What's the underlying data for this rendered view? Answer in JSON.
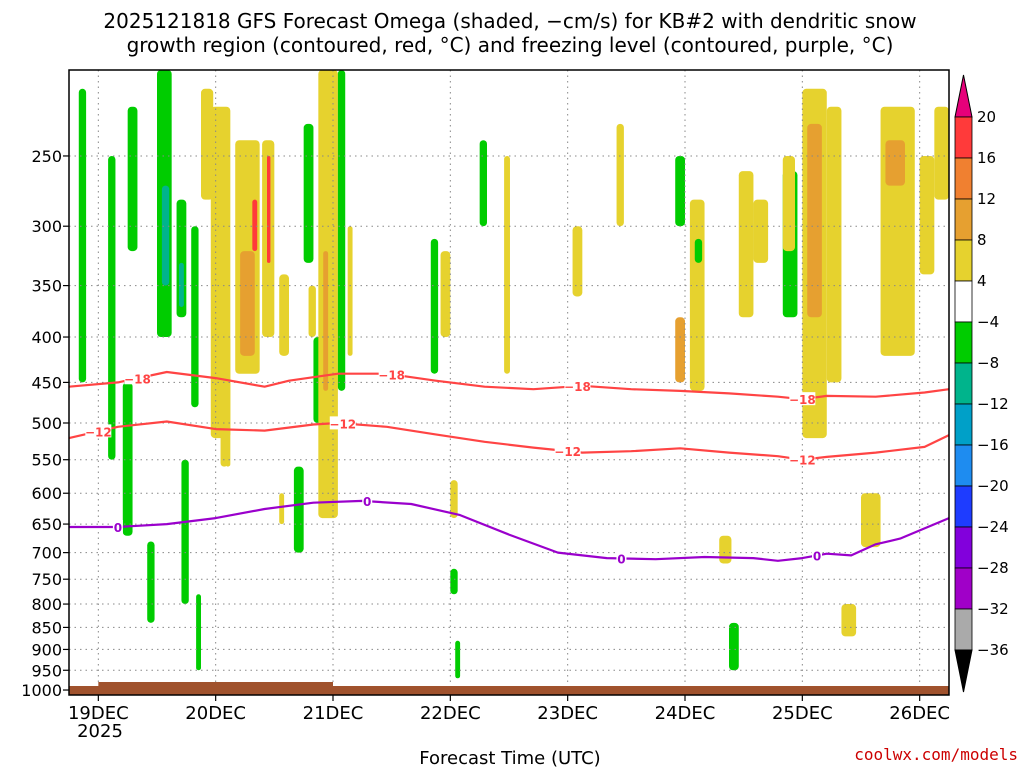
{
  "chart_data": {
    "type": "heatmap",
    "title_lines": [
      "2025121818 GFS Forecast Omega (shaded, −cm/s) for KB#2 with dendritic snow",
      "growth region (contoured, red, °C) and freezing level (contoured, purple, °C)"
    ],
    "xlabel": "Forecast Time (UTC)",
    "year_label": "2025",
    "x_ticks": [
      "19DEC",
      "20DEC",
      "21DEC",
      "22DEC",
      "23DEC",
      "24DEC",
      "25DEC",
      "26DEC"
    ],
    "x_tick_hours": [
      6,
      30,
      54,
      78,
      102,
      126,
      150,
      174
    ],
    "x_range_hours": [
      0,
      180
    ],
    "y_ticks": [
      250,
      300,
      350,
      400,
      450,
      500,
      550,
      600,
      650,
      700,
      750,
      800,
      850,
      900,
      950,
      1000
    ],
    "y_range_hpa": [
      200,
      1013
    ],
    "colorbar": {
      "labels": [
        "20",
        "16",
        "12",
        "8",
        "4",
        "−4",
        "−8",
        "−12",
        "−16",
        "−20",
        "−24",
        "−28",
        "−32",
        "−36"
      ],
      "colors": [
        "#ff3a3a",
        "#f08030",
        "#e6a030",
        "#e6d22e",
        "#ffffff",
        "#00cc00",
        "#00b48c",
        "#00a0c8",
        "#1e8cf0",
        "#1e3cff",
        "#8200dc",
        "#a000c8",
        "#aaaaaa"
      ],
      "top_arrow_color": "#e6007a",
      "bottom_arrow_color": "#000000"
    },
    "contours": [
      {
        "name": "-18C",
        "label": "−18",
        "color": "#ff4444",
        "points": [
          [
            0,
            455
          ],
          [
            10,
            450
          ],
          [
            20,
            438
          ],
          [
            30,
            445
          ],
          [
            40,
            455
          ],
          [
            45,
            448
          ],
          [
            55,
            440
          ],
          [
            65,
            440
          ],
          [
            75,
            448
          ],
          [
            85,
            455
          ],
          [
            95,
            458
          ],
          [
            105,
            454
          ],
          [
            115,
            458
          ],
          [
            125,
            460
          ],
          [
            135,
            463
          ],
          [
            145,
            467
          ],
          [
            150,
            470
          ],
          [
            155,
            466
          ],
          [
            165,
            467
          ],
          [
            175,
            462
          ],
          [
            180,
            458
          ]
        ],
        "label_hours": [
          14,
          66,
          104,
          150
        ]
      },
      {
        "name": "-12C",
        "label": "−12",
        "color": "#ff4444",
        "points": [
          [
            0,
            520
          ],
          [
            10,
            505
          ],
          [
            20,
            498
          ],
          [
            30,
            508
          ],
          [
            40,
            510
          ],
          [
            50,
            502
          ],
          [
            55,
            500
          ],
          [
            65,
            505
          ],
          [
            75,
            515
          ],
          [
            85,
            525
          ],
          [
            95,
            533
          ],
          [
            105,
            540
          ],
          [
            115,
            538
          ],
          [
            125,
            534
          ],
          [
            135,
            540
          ],
          [
            145,
            545
          ],
          [
            150,
            550
          ],
          [
            155,
            546
          ],
          [
            165,
            540
          ],
          [
            175,
            532
          ],
          [
            180,
            516
          ]
        ],
        "label_hours": [
          6,
          56,
          102,
          150
        ]
      },
      {
        "name": "0C",
        "label": "0",
        "color": "#9a00cc",
        "points": [
          [
            0,
            655
          ],
          [
            10,
            655
          ],
          [
            20,
            650
          ],
          [
            30,
            640
          ],
          [
            40,
            625
          ],
          [
            50,
            615
          ],
          [
            60,
            612
          ],
          [
            70,
            617
          ],
          [
            80,
            635
          ],
          [
            90,
            668
          ],
          [
            100,
            700
          ],
          [
            110,
            710
          ],
          [
            120,
            712
          ],
          [
            130,
            708
          ],
          [
            140,
            710
          ],
          [
            145,
            715
          ],
          [
            150,
            710
          ],
          [
            155,
            702
          ],
          [
            160,
            705
          ],
          [
            165,
            685
          ],
          [
            170,
            675
          ],
          [
            180,
            640
          ]
        ],
        "label_hours": [
          10,
          61,
          113,
          153
        ]
      }
    ],
    "omega_features": [
      {
        "h0": 2,
        "h1": 3.5,
        "p0": 210,
        "p1": 450,
        "color": "#00cc00"
      },
      {
        "h0": 8,
        "h1": 9.5,
        "p0": 250,
        "p1": 550,
        "color": "#00cc00"
      },
      {
        "h0": 11,
        "h1": 13,
        "p0": 450,
        "p1": 670,
        "color": "#00cc00"
      },
      {
        "h0": 12,
        "h1": 14,
        "p0": 220,
        "p1": 320,
        "color": "#00cc00"
      },
      {
        "h0": 18,
        "h1": 21,
        "p0": 200,
        "p1": 400,
        "color": "#00cc00"
      },
      {
        "h0": 19,
        "h1": 20.5,
        "p0": 270,
        "p1": 350,
        "color": "#00b48c"
      },
      {
        "h0": 22,
        "h1": 24,
        "p0": 280,
        "p1": 380,
        "color": "#00cc00"
      },
      {
        "h0": 22.5,
        "h1": 23.5,
        "p0": 330,
        "p1": 370,
        "color": "#00b48c"
      },
      {
        "h0": 16,
        "h1": 17.5,
        "p0": 680,
        "p1": 840,
        "color": "#00cc00"
      },
      {
        "h0": 23,
        "h1": 24.5,
        "p0": 550,
        "p1": 800,
        "color": "#00cc00"
      },
      {
        "h0": 25,
        "h1": 26.5,
        "p0": 300,
        "p1": 480,
        "color": "#00cc00"
      },
      {
        "h0": 26,
        "h1": 27,
        "p0": 780,
        "p1": 950,
        "color": "#00cc00"
      },
      {
        "h0": 27,
        "h1": 29.5,
        "p0": 210,
        "p1": 280,
        "color": "#e6d22e"
      },
      {
        "h0": 29,
        "h1": 33,
        "p0": 220,
        "p1": 520,
        "color": "#e6d22e"
      },
      {
        "h0": 31,
        "h1": 32.5,
        "p0": 300,
        "p1": 560,
        "color": "#e6d22e"
      },
      {
        "h0": 32,
        "h1": 33,
        "p0": 400,
        "p1": 560,
        "color": "#e6d22e"
      },
      {
        "h0": 34,
        "h1": 39,
        "p0": 240,
        "p1": 440,
        "color": "#e6d22e"
      },
      {
        "h0": 35,
        "h1": 38,
        "p0": 320,
        "p1": 420,
        "color": "#e6a030"
      },
      {
        "h0": 37.5,
        "h1": 38.5,
        "p0": 280,
        "p1": 320,
        "color": "#ff3a3a"
      },
      {
        "h0": 39.5,
        "h1": 42,
        "p0": 240,
        "p1": 400,
        "color": "#e6d22e"
      },
      {
        "h0": 40.5,
        "h1": 41.2,
        "p0": 250,
        "p1": 330,
        "color": "#ff3a3a"
      },
      {
        "h0": 43,
        "h1": 45,
        "p0": 340,
        "p1": 420,
        "color": "#e6d22e"
      },
      {
        "h0": 43,
        "h1": 44,
        "p0": 600,
        "p1": 650,
        "color": "#e6d22e"
      },
      {
        "h0": 46,
        "h1": 48,
        "p0": 560,
        "p1": 700,
        "color": "#00cc00"
      },
      {
        "h0": 48,
        "h1": 50,
        "p0": 230,
        "p1": 330,
        "color": "#00cc00"
      },
      {
        "h0": 49,
        "h1": 50.5,
        "p0": 350,
        "p1": 400,
        "color": "#e6d22e"
      },
      {
        "h0": 50,
        "h1": 52,
        "p0": 400,
        "p1": 500,
        "color": "#00cc00"
      },
      {
        "h0": 51,
        "h1": 55,
        "p0": 200,
        "p1": 640,
        "color": "#e6d22e"
      },
      {
        "h0": 52,
        "h1": 53,
        "p0": 320,
        "p1": 460,
        "color": "#e6a030"
      },
      {
        "h0": 55,
        "h1": 56.5,
        "p0": 200,
        "p1": 460,
        "color": "#00cc00"
      },
      {
        "h0": 57,
        "h1": 58,
        "p0": 300,
        "p1": 420,
        "color": "#e6d22e"
      },
      {
        "h0": 74,
        "h1": 75.5,
        "p0": 310,
        "p1": 440,
        "color": "#00cc00"
      },
      {
        "h0": 76,
        "h1": 78,
        "p0": 320,
        "p1": 400,
        "color": "#e6d22e"
      },
      {
        "h0": 78,
        "h1": 79.5,
        "p0": 580,
        "p1": 640,
        "color": "#e6d22e"
      },
      {
        "h0": 78,
        "h1": 79.5,
        "p0": 730,
        "p1": 780,
        "color": "#00cc00"
      },
      {
        "h0": 79,
        "h1": 80,
        "p0": 880,
        "p1": 970,
        "color": "#00cc00"
      },
      {
        "h0": 84,
        "h1": 85.5,
        "p0": 240,
        "p1": 300,
        "color": "#00cc00"
      },
      {
        "h0": 89,
        "h1": 90.2,
        "p0": 250,
        "p1": 440,
        "color": "#e6d22e"
      },
      {
        "h0": 103,
        "h1": 105,
        "p0": 300,
        "p1": 360,
        "color": "#e6d22e"
      },
      {
        "h0": 112,
        "h1": 113.5,
        "p0": 230,
        "p1": 300,
        "color": "#e6d22e"
      },
      {
        "h0": 124,
        "h1": 126,
        "p0": 250,
        "p1": 300,
        "color": "#00cc00"
      },
      {
        "h0": 124,
        "h1": 126,
        "p0": 380,
        "p1": 450,
        "color": "#e6a030"
      },
      {
        "h0": 127,
        "h1": 130,
        "p0": 280,
        "p1": 460,
        "color": "#e6d22e"
      },
      {
        "h0": 128,
        "h1": 129.5,
        "p0": 310,
        "p1": 330,
        "color": "#00cc00"
      },
      {
        "h0": 133,
        "h1": 135.5,
        "p0": 670,
        "p1": 720,
        "color": "#e6d22e"
      },
      {
        "h0": 135,
        "h1": 137,
        "p0": 840,
        "p1": 950,
        "color": "#00cc00"
      },
      {
        "h0": 137,
        "h1": 140,
        "p0": 260,
        "p1": 380,
        "color": "#e6d22e"
      },
      {
        "h0": 140,
        "h1": 143,
        "p0": 280,
        "p1": 330,
        "color": "#e6d22e"
      },
      {
        "h0": 146,
        "h1": 149,
        "p0": 260,
        "p1": 380,
        "color": "#00cc00"
      },
      {
        "h0": 146,
        "h1": 148.5,
        "p0": 250,
        "p1": 320,
        "color": "#e6d22e"
      },
      {
        "h0": 150,
        "h1": 155,
        "p0": 210,
        "p1": 520,
        "color": "#e6d22e"
      },
      {
        "h0": 151,
        "h1": 154,
        "p0": 230,
        "p1": 380,
        "color": "#e6a030"
      },
      {
        "h0": 155,
        "h1": 158,
        "p0": 220,
        "p1": 450,
        "color": "#e6d22e"
      },
      {
        "h0": 158,
        "h1": 161,
        "p0": 800,
        "p1": 870,
        "color": "#e6d22e"
      },
      {
        "h0": 162,
        "h1": 166,
        "p0": 600,
        "p1": 690,
        "color": "#e6d22e"
      },
      {
        "h0": 166,
        "h1": 173,
        "p0": 220,
        "p1": 420,
        "color": "#e6d22e"
      },
      {
        "h0": 167,
        "h1": 171,
        "p0": 240,
        "p1": 270,
        "color": "#e6a030"
      },
      {
        "h0": 174,
        "h1": 177,
        "p0": 250,
        "p1": 340,
        "color": "#e6d22e"
      },
      {
        "h0": 177,
        "h1": 180,
        "p0": 220,
        "p1": 280,
        "color": "#e6d22e"
      }
    ],
    "terrain_color": "#a0522d"
  },
  "credit": "coolwx.com/models"
}
